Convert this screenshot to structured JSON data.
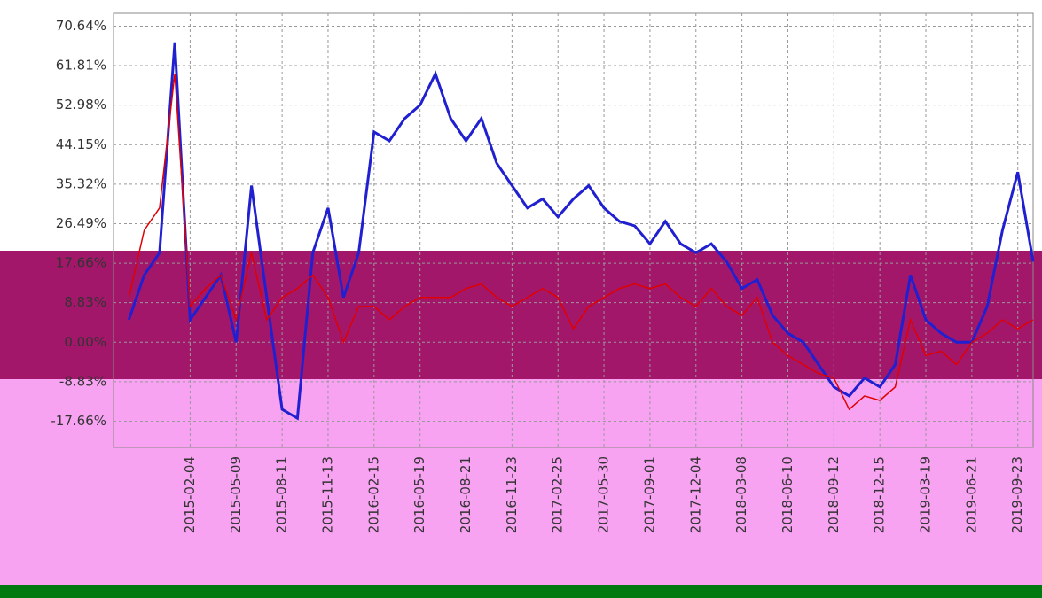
{
  "chart_data": {
    "type": "line",
    "categories": [
      null,
      null,
      null,
      null,
      null,
      "2015-02-04",
      null,
      null,
      "2015-05-09",
      null,
      null,
      "2015-08-11",
      null,
      null,
      "2015-11-13",
      null,
      null,
      "2016-02-15",
      null,
      null,
      "2016-05-19",
      null,
      null,
      "2016-08-21",
      null,
      null,
      "2016-11-23",
      null,
      null,
      "2017-02-25",
      null,
      null,
      "2017-05-30",
      null,
      null,
      "2017-09-01",
      null,
      null,
      "2017-12-04",
      null,
      null,
      "2018-03-08",
      null,
      null,
      "2018-06-10",
      null,
      null,
      "2018-09-12",
      null,
      null,
      "2018-12-15",
      null,
      null,
      "2019-03-19",
      null,
      null,
      "2019-06-21",
      null,
      null,
      "2019-09-23",
      null
    ],
    "series": [
      {
        "color": "#2020d0",
        "values": [
          null,
          5,
          15,
          20,
          67,
          5,
          10,
          15,
          0,
          35,
          10,
          -15,
          -17,
          20,
          30,
          10,
          20,
          47,
          45,
          50,
          53,
          60,
          50,
          45,
          50,
          40,
          35,
          30,
          32,
          28,
          32,
          35,
          30,
          27,
          26,
          22,
          27,
          22,
          20,
          22,
          18,
          12,
          14,
          6,
          2,
          0,
          -5,
          -10,
          -12,
          -8,
          -10,
          -5,
          15,
          5,
          2,
          0,
          0,
          8,
          25,
          38,
          18
        ]
      },
      {
        "color": "#e00000",
        "values": [
          null,
          10,
          25,
          30,
          60,
          8,
          12,
          15,
          5,
          20,
          5,
          10,
          12,
          15,
          10,
          0,
          8,
          8,
          5,
          8,
          10,
          10,
          10,
          12,
          13,
          10,
          8,
          10,
          12,
          10,
          3,
          8,
          10,
          12,
          13,
          12,
          13,
          10,
          8,
          12,
          8,
          6,
          10,
          0,
          -3,
          -5,
          -7,
          -8,
          -15,
          -12,
          -13,
          -10,
          5,
          -3,
          -2,
          -5,
          0,
          2,
          5,
          3,
          5
        ]
      }
    ],
    "ylim": [
      -23.5,
      73.5
    ],
    "yticks": [
      {
        "value": 70.64,
        "label": "70.64%"
      },
      {
        "value": 61.81,
        "label": "61.81%"
      },
      {
        "value": 52.98,
        "label": "52.98%"
      },
      {
        "value": 44.15,
        "label": "44.15%"
      },
      {
        "value": 35.32,
        "label": "35.32%"
      },
      {
        "value": 26.49,
        "label": "26.49%"
      },
      {
        "value": 17.66,
        "label": "17.66%"
      },
      {
        "value": 8.83,
        "label": "8.83%"
      },
      {
        "value": 0,
        "label": "0.00%"
      },
      {
        "value": -8.83,
        "label": "-8.83%"
      },
      {
        "value": -17.66,
        "label": "-17.66%"
      }
    ],
    "grid": true
  }
}
